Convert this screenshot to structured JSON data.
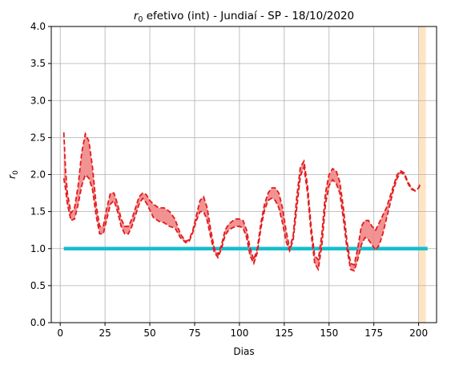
{
  "chart_data": {
    "type": "line",
    "title_symbol": "r",
    "title_subscript": "0",
    "title_rest": " efetivo (int) - Jundiaí - SP - 18/10/2020",
    "xlabel": "Dias",
    "ylabel_symbol": "r",
    "ylabel_subscript": "0",
    "xlim": [
      -5,
      210
    ],
    "ylim": [
      0,
      4
    ],
    "xticks": [
      0,
      25,
      50,
      75,
      100,
      125,
      150,
      175,
      200
    ],
    "yticks": [
      "0.0",
      "0.5",
      "1.0",
      "1.5",
      "2.0",
      "2.5",
      "3.0",
      "3.5",
      "4.0"
    ],
    "grid": true,
    "reference_line": {
      "y": 1.0,
      "x_start": 2,
      "x_end": 205,
      "color": "#17becf"
    },
    "highlight_band": {
      "x_start": 200,
      "x_end": 204,
      "color": "#ffe4c4"
    },
    "line_color": "#e41a1c",
    "band_color": "#f08080",
    "x": [
      2,
      3,
      4,
      6,
      8,
      10,
      12,
      14,
      16,
      18,
      20,
      22,
      24,
      26,
      28,
      30,
      32,
      34,
      36,
      38,
      40,
      42,
      44,
      46,
      48,
      50,
      52,
      55,
      58,
      61,
      64,
      67,
      70,
      72,
      74,
      76,
      78,
      80,
      82,
      84,
      86,
      88,
      90,
      92,
      94,
      96,
      98,
      100,
      102,
      104,
      106,
      108,
      110,
      112,
      114,
      116,
      118,
      120,
      122,
      124,
      126,
      128,
      130,
      132,
      134,
      136,
      138,
      140,
      142,
      144,
      146,
      148,
      150,
      152,
      154,
      156,
      158,
      160,
      162,
      164,
      166,
      168,
      170,
      172,
      174,
      176,
      178,
      180,
      182,
      184,
      186,
      188,
      190,
      192,
      194,
      196,
      198,
      200,
      201
    ],
    "upper": [
      2.57,
      2.05,
      1.75,
      1.48,
      1.55,
      1.85,
      2.3,
      2.55,
      2.45,
      2.1,
      1.6,
      1.3,
      1.3,
      1.55,
      1.75,
      1.75,
      1.6,
      1.4,
      1.3,
      1.3,
      1.4,
      1.55,
      1.7,
      1.75,
      1.73,
      1.65,
      1.6,
      1.55,
      1.55,
      1.5,
      1.4,
      1.2,
      1.1,
      1.12,
      1.25,
      1.45,
      1.65,
      1.7,
      1.55,
      1.25,
      1.0,
      0.92,
      1.05,
      1.25,
      1.33,
      1.37,
      1.4,
      1.4,
      1.38,
      1.25,
      1.0,
      0.85,
      1.0,
      1.35,
      1.6,
      1.75,
      1.82,
      1.82,
      1.75,
      1.55,
      1.25,
      1.0,
      1.18,
      1.7,
      2.1,
      2.18,
      1.85,
      1.3,
      0.9,
      0.85,
      1.2,
      1.75,
      2.0,
      2.08,
      2.05,
      1.9,
      1.55,
      1.1,
      0.8,
      0.78,
      1.0,
      1.3,
      1.38,
      1.38,
      1.3,
      1.25,
      1.35,
      1.45,
      1.55,
      1.7,
      1.85,
      2.0,
      2.05,
      2.02,
      1.9,
      1.82,
      1.78,
      1.82,
      1.88
    ],
    "lower": [
      1.95,
      1.8,
      1.6,
      1.38,
      1.4,
      1.6,
      1.85,
      2.0,
      1.95,
      1.8,
      1.45,
      1.2,
      1.2,
      1.4,
      1.6,
      1.65,
      1.5,
      1.3,
      1.2,
      1.2,
      1.3,
      1.45,
      1.6,
      1.68,
      1.62,
      1.52,
      1.42,
      1.37,
      1.35,
      1.3,
      1.28,
      1.15,
      1.08,
      1.1,
      1.22,
      1.38,
      1.5,
      1.5,
      1.38,
      1.15,
      0.95,
      0.88,
      1.0,
      1.18,
      1.25,
      1.28,
      1.3,
      1.3,
      1.28,
      1.15,
      0.9,
      0.8,
      0.95,
      1.28,
      1.52,
      1.65,
      1.68,
      1.65,
      1.55,
      1.35,
      1.1,
      0.97,
      1.12,
      1.55,
      1.98,
      2.1,
      1.75,
      1.2,
      0.8,
      0.72,
      1.05,
      1.6,
      1.85,
      1.93,
      1.88,
      1.75,
      1.4,
      1.0,
      0.72,
      0.7,
      0.85,
      1.05,
      1.15,
      1.12,
      1.05,
      0.98,
      1.05,
      1.2,
      1.4,
      1.6,
      1.8,
      1.95,
      2.03,
      2.0,
      1.88,
      1.8,
      1.78,
      1.82,
      1.88
    ]
  }
}
